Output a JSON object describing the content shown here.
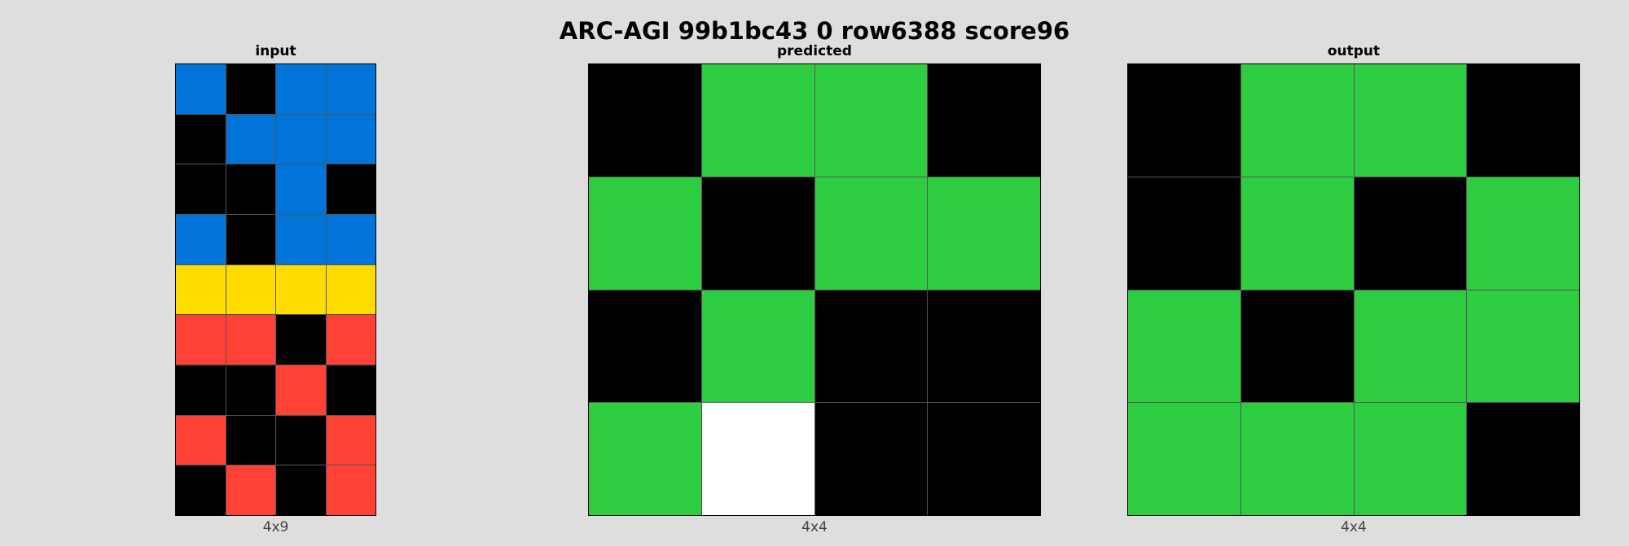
{
  "title": "ARC-AGI 99b1bc43 0 row6388 score96",
  "palette": {
    "0": "#000000",
    "1": "#0074d9",
    "2": "#ff4136",
    "3": "#2ecc40",
    "4": "#ffdc00",
    "W": "#ffffff"
  },
  "panels": [
    {
      "title": "input",
      "dims": "4x9",
      "rows": [
        [
          1,
          0,
          1,
          1
        ],
        [
          0,
          1,
          1,
          1
        ],
        [
          0,
          0,
          1,
          0
        ],
        [
          1,
          0,
          1,
          1
        ],
        [
          4,
          4,
          4,
          4
        ],
        [
          2,
          2,
          0,
          2
        ],
        [
          0,
          0,
          2,
          0
        ],
        [
          2,
          0,
          0,
          2
        ],
        [
          0,
          2,
          0,
          2
        ]
      ]
    },
    {
      "title": "predicted",
      "dims": "4x4",
      "rows": [
        [
          0,
          3,
          3,
          0
        ],
        [
          3,
          0,
          3,
          3
        ],
        [
          0,
          3,
          0,
          0
        ],
        [
          3,
          "W",
          0,
          0
        ]
      ]
    },
    {
      "title": "output",
      "dims": "4x4",
      "rows": [
        [
          0,
          3,
          3,
          0
        ],
        [
          0,
          3,
          0,
          3
        ],
        [
          3,
          0,
          3,
          3
        ],
        [
          3,
          3,
          3,
          0
        ]
      ]
    }
  ]
}
